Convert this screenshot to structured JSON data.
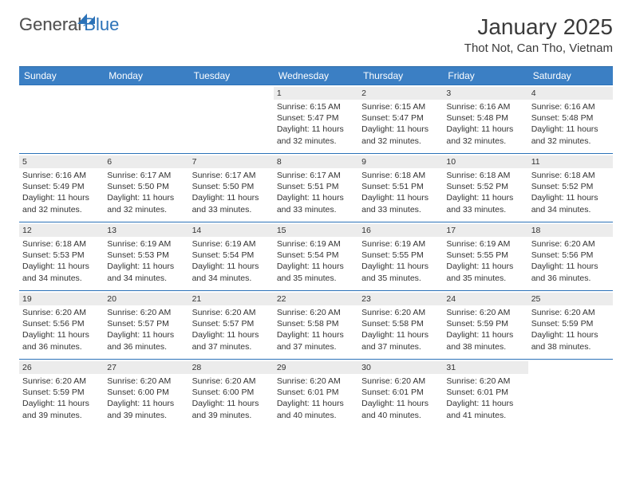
{
  "logo": {
    "general": "General",
    "blue": "Blue"
  },
  "header": {
    "title": "January 2025",
    "location": "Thot Not, Can Tho, Vietnam"
  },
  "colors": {
    "accent": "#3b7fc4",
    "rule": "#2b72b8",
    "daybg": "#ececec",
    "text": "#333333"
  },
  "daynames": [
    "Sunday",
    "Monday",
    "Tuesday",
    "Wednesday",
    "Thursday",
    "Friday",
    "Saturday"
  ],
  "weeks": [
    [
      null,
      null,
      null,
      {
        "n": "1",
        "sr": "6:15 AM",
        "ss": "5:47 PM",
        "dl": "11 hours and 32 minutes."
      },
      {
        "n": "2",
        "sr": "6:15 AM",
        "ss": "5:47 PM",
        "dl": "11 hours and 32 minutes."
      },
      {
        "n": "3",
        "sr": "6:16 AM",
        "ss": "5:48 PM",
        "dl": "11 hours and 32 minutes."
      },
      {
        "n": "4",
        "sr": "6:16 AM",
        "ss": "5:48 PM",
        "dl": "11 hours and 32 minutes."
      }
    ],
    [
      {
        "n": "5",
        "sr": "6:16 AM",
        "ss": "5:49 PM",
        "dl": "11 hours and 32 minutes."
      },
      {
        "n": "6",
        "sr": "6:17 AM",
        "ss": "5:50 PM",
        "dl": "11 hours and 32 minutes."
      },
      {
        "n": "7",
        "sr": "6:17 AM",
        "ss": "5:50 PM",
        "dl": "11 hours and 33 minutes."
      },
      {
        "n": "8",
        "sr": "6:17 AM",
        "ss": "5:51 PM",
        "dl": "11 hours and 33 minutes."
      },
      {
        "n": "9",
        "sr": "6:18 AM",
        "ss": "5:51 PM",
        "dl": "11 hours and 33 minutes."
      },
      {
        "n": "10",
        "sr": "6:18 AM",
        "ss": "5:52 PM",
        "dl": "11 hours and 33 minutes."
      },
      {
        "n": "11",
        "sr": "6:18 AM",
        "ss": "5:52 PM",
        "dl": "11 hours and 34 minutes."
      }
    ],
    [
      {
        "n": "12",
        "sr": "6:18 AM",
        "ss": "5:53 PM",
        "dl": "11 hours and 34 minutes."
      },
      {
        "n": "13",
        "sr": "6:19 AM",
        "ss": "5:53 PM",
        "dl": "11 hours and 34 minutes."
      },
      {
        "n": "14",
        "sr": "6:19 AM",
        "ss": "5:54 PM",
        "dl": "11 hours and 34 minutes."
      },
      {
        "n": "15",
        "sr": "6:19 AM",
        "ss": "5:54 PM",
        "dl": "11 hours and 35 minutes."
      },
      {
        "n": "16",
        "sr": "6:19 AM",
        "ss": "5:55 PM",
        "dl": "11 hours and 35 minutes."
      },
      {
        "n": "17",
        "sr": "6:19 AM",
        "ss": "5:55 PM",
        "dl": "11 hours and 35 minutes."
      },
      {
        "n": "18",
        "sr": "6:20 AM",
        "ss": "5:56 PM",
        "dl": "11 hours and 36 minutes."
      }
    ],
    [
      {
        "n": "19",
        "sr": "6:20 AM",
        "ss": "5:56 PM",
        "dl": "11 hours and 36 minutes."
      },
      {
        "n": "20",
        "sr": "6:20 AM",
        "ss": "5:57 PM",
        "dl": "11 hours and 36 minutes."
      },
      {
        "n": "21",
        "sr": "6:20 AM",
        "ss": "5:57 PM",
        "dl": "11 hours and 37 minutes."
      },
      {
        "n": "22",
        "sr": "6:20 AM",
        "ss": "5:58 PM",
        "dl": "11 hours and 37 minutes."
      },
      {
        "n": "23",
        "sr": "6:20 AM",
        "ss": "5:58 PM",
        "dl": "11 hours and 37 minutes."
      },
      {
        "n": "24",
        "sr": "6:20 AM",
        "ss": "5:59 PM",
        "dl": "11 hours and 38 minutes."
      },
      {
        "n": "25",
        "sr": "6:20 AM",
        "ss": "5:59 PM",
        "dl": "11 hours and 38 minutes."
      }
    ],
    [
      {
        "n": "26",
        "sr": "6:20 AM",
        "ss": "5:59 PM",
        "dl": "11 hours and 39 minutes."
      },
      {
        "n": "27",
        "sr": "6:20 AM",
        "ss": "6:00 PM",
        "dl": "11 hours and 39 minutes."
      },
      {
        "n": "28",
        "sr": "6:20 AM",
        "ss": "6:00 PM",
        "dl": "11 hours and 39 minutes."
      },
      {
        "n": "29",
        "sr": "6:20 AM",
        "ss": "6:01 PM",
        "dl": "11 hours and 40 minutes."
      },
      {
        "n": "30",
        "sr": "6:20 AM",
        "ss": "6:01 PM",
        "dl": "11 hours and 40 minutes."
      },
      {
        "n": "31",
        "sr": "6:20 AM",
        "ss": "6:01 PM",
        "dl": "11 hours and 41 minutes."
      },
      null
    ]
  ],
  "labels": {
    "sunrise": "Sunrise:",
    "sunset": "Sunset:",
    "daylight": "Daylight:"
  }
}
